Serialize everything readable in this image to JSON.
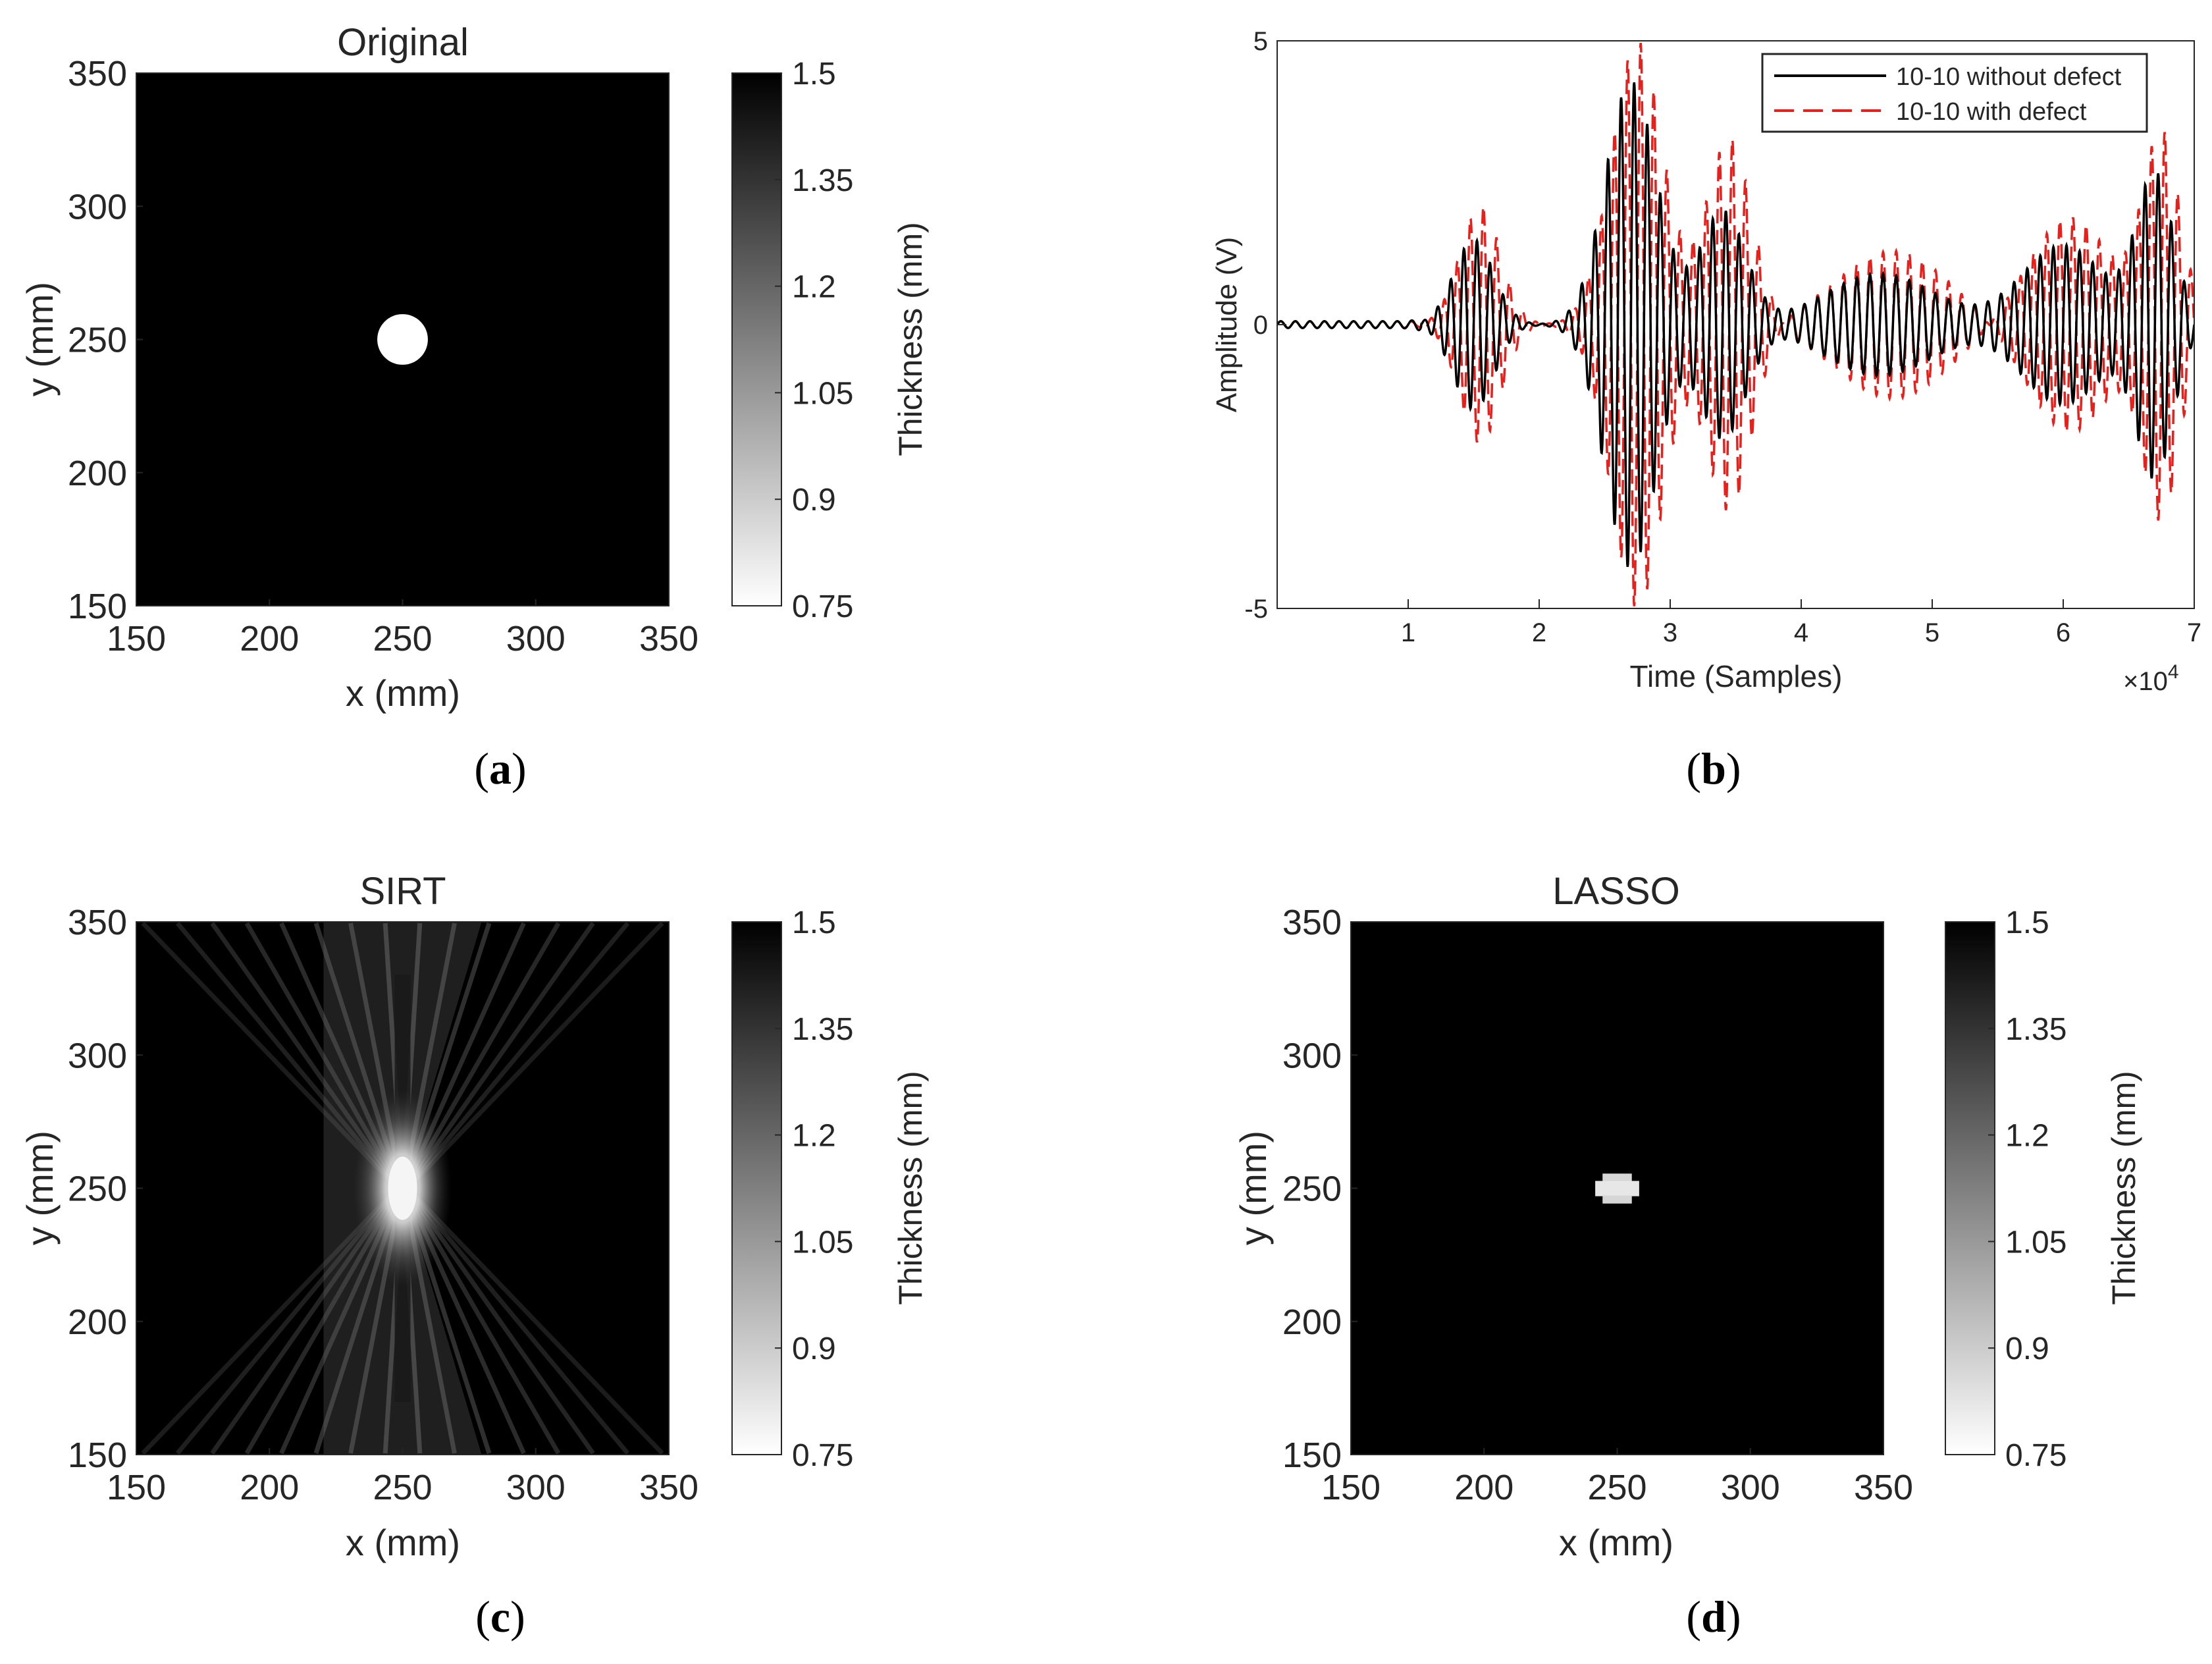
{
  "figure": {
    "panels": [
      "a",
      "b",
      "c",
      "d"
    ]
  },
  "chart_data": [
    {
      "id": "a",
      "type": "heatmap",
      "title": "Original",
      "caption_letter": "a",
      "xlabel": "x (mm)",
      "ylabel": "y (mm)",
      "xlim": [
        150,
        350
      ],
      "ylim": [
        150,
        350
      ],
      "xticks": [
        "150",
        "200",
        "250",
        "300",
        "350"
      ],
      "yticks": [
        "150",
        "200",
        "250",
        "300",
        "350"
      ],
      "image": {
        "background_thickness": 1.5,
        "defect": {
          "cx": 250,
          "cy": 250,
          "radius": 9.5,
          "thickness": 0.75
        }
      },
      "colorbar": {
        "label": "Thickness (mm)",
        "range": [
          0.75,
          1.5
        ],
        "ticks": [
          "0.75",
          "0.9",
          "1.05",
          "1.2",
          "1.35",
          "1.5"
        ],
        "colormap": "gray (0.75 white to 1.5 black)"
      }
    },
    {
      "id": "b",
      "type": "line",
      "caption_letter": "b",
      "xlabel": "Time (Samples)",
      "ylabel": "Amplitude (V)",
      "xlim": [
        0,
        7
      ],
      "ylim": [
        -5,
        5
      ],
      "xticks": [
        "1",
        "2",
        "3",
        "4",
        "5",
        "6",
        "7"
      ],
      "yticks": [
        "-5",
        "0",
        "5"
      ],
      "x_multiplier": {
        "prefix": "×10",
        "exponent": "4"
      },
      "legend_position": "top-right",
      "series": [
        {
          "name": "10-10 without defect",
          "color": "#000000",
          "style": "solid",
          "wave_packets": [
            {
              "center": 1.5,
              "width": 0.22,
              "amplitude": 1.5,
              "freq": 10
            },
            {
              "center": 2.7,
              "width": 0.28,
              "amplitude": 4.3,
              "freq": 10
            },
            {
              "center": 3.4,
              "width": 0.25,
              "amplitude": 2.0,
              "freq": 10
            },
            {
              "center": 4.6,
              "width": 0.6,
              "amplitude": 0.9,
              "freq": 10
            },
            {
              "center": 6.0,
              "width": 0.45,
              "amplitude": 1.4,
              "freq": 10
            },
            {
              "center": 6.7,
              "width": 0.2,
              "amplitude": 2.6,
              "freq": 10
            }
          ]
        },
        {
          "name": "10-10 with defect",
          "color": "#e8201c",
          "style": "dashed",
          "wave_packets": [
            {
              "center": 1.55,
              "width": 0.22,
              "amplitude": 2.1,
              "freq": 10
            },
            {
              "center": 2.75,
              "width": 0.28,
              "amplitude": 5.0,
              "freq": 10
            },
            {
              "center": 3.45,
              "width": 0.25,
              "amplitude": 3.3,
              "freq": 10
            },
            {
              "center": 4.7,
              "width": 0.6,
              "amplitude": 1.3,
              "freq": 10
            },
            {
              "center": 6.05,
              "width": 0.45,
              "amplitude": 1.9,
              "freq": 10
            },
            {
              "center": 6.75,
              "width": 0.2,
              "amplitude": 3.3,
              "freq": 10
            }
          ]
        }
      ]
    },
    {
      "id": "c",
      "type": "heatmap",
      "title": "SIRT",
      "caption_letter": "c",
      "xlabel": "x (mm)",
      "ylabel": "y (mm)",
      "xlim": [
        150,
        350
      ],
      "ylim": [
        150,
        350
      ],
      "xticks": [
        "150",
        "200",
        "250",
        "300",
        "350"
      ],
      "yticks": [
        "150",
        "200",
        "250",
        "300",
        "350"
      ],
      "image": {
        "background_thickness": 1.5,
        "pattern": "hourglass ray streaks converging at (250, 250)",
        "min_thickness": 0.78,
        "rays_per_side": 16
      },
      "colorbar": {
        "label": "Thickness (mm)",
        "range": [
          0.75,
          1.5
        ],
        "ticks": [
          "0.75",
          "0.9",
          "1.05",
          "1.2",
          "1.35",
          "1.5"
        ],
        "colormap": "gray (0.75 white to 1.5 black)"
      }
    },
    {
      "id": "d",
      "type": "heatmap",
      "title": "LASSO",
      "caption_letter": "d",
      "xlabel": "x (mm)",
      "ylabel": "y (mm)",
      "xlim": [
        150,
        350
      ],
      "ylim": [
        150,
        350
      ],
      "xticks": [
        "150",
        "200",
        "250",
        "300",
        "350"
      ],
      "yticks": [
        "150",
        "200",
        "250",
        "300",
        "350"
      ],
      "image": {
        "background_thickness": 1.5,
        "defect": {
          "cx": 250,
          "cy": 250,
          "radius": 11,
          "thickness": 0.82,
          "pixelated": true
        }
      },
      "colorbar": {
        "label": "Thickness (mm)",
        "range": [
          0.75,
          1.5
        ],
        "ticks": [
          "0.75",
          "0.9",
          "1.05",
          "1.2",
          "1.35",
          "1.5"
        ],
        "colormap": "gray (0.75 white to 1.5 black)"
      }
    }
  ]
}
